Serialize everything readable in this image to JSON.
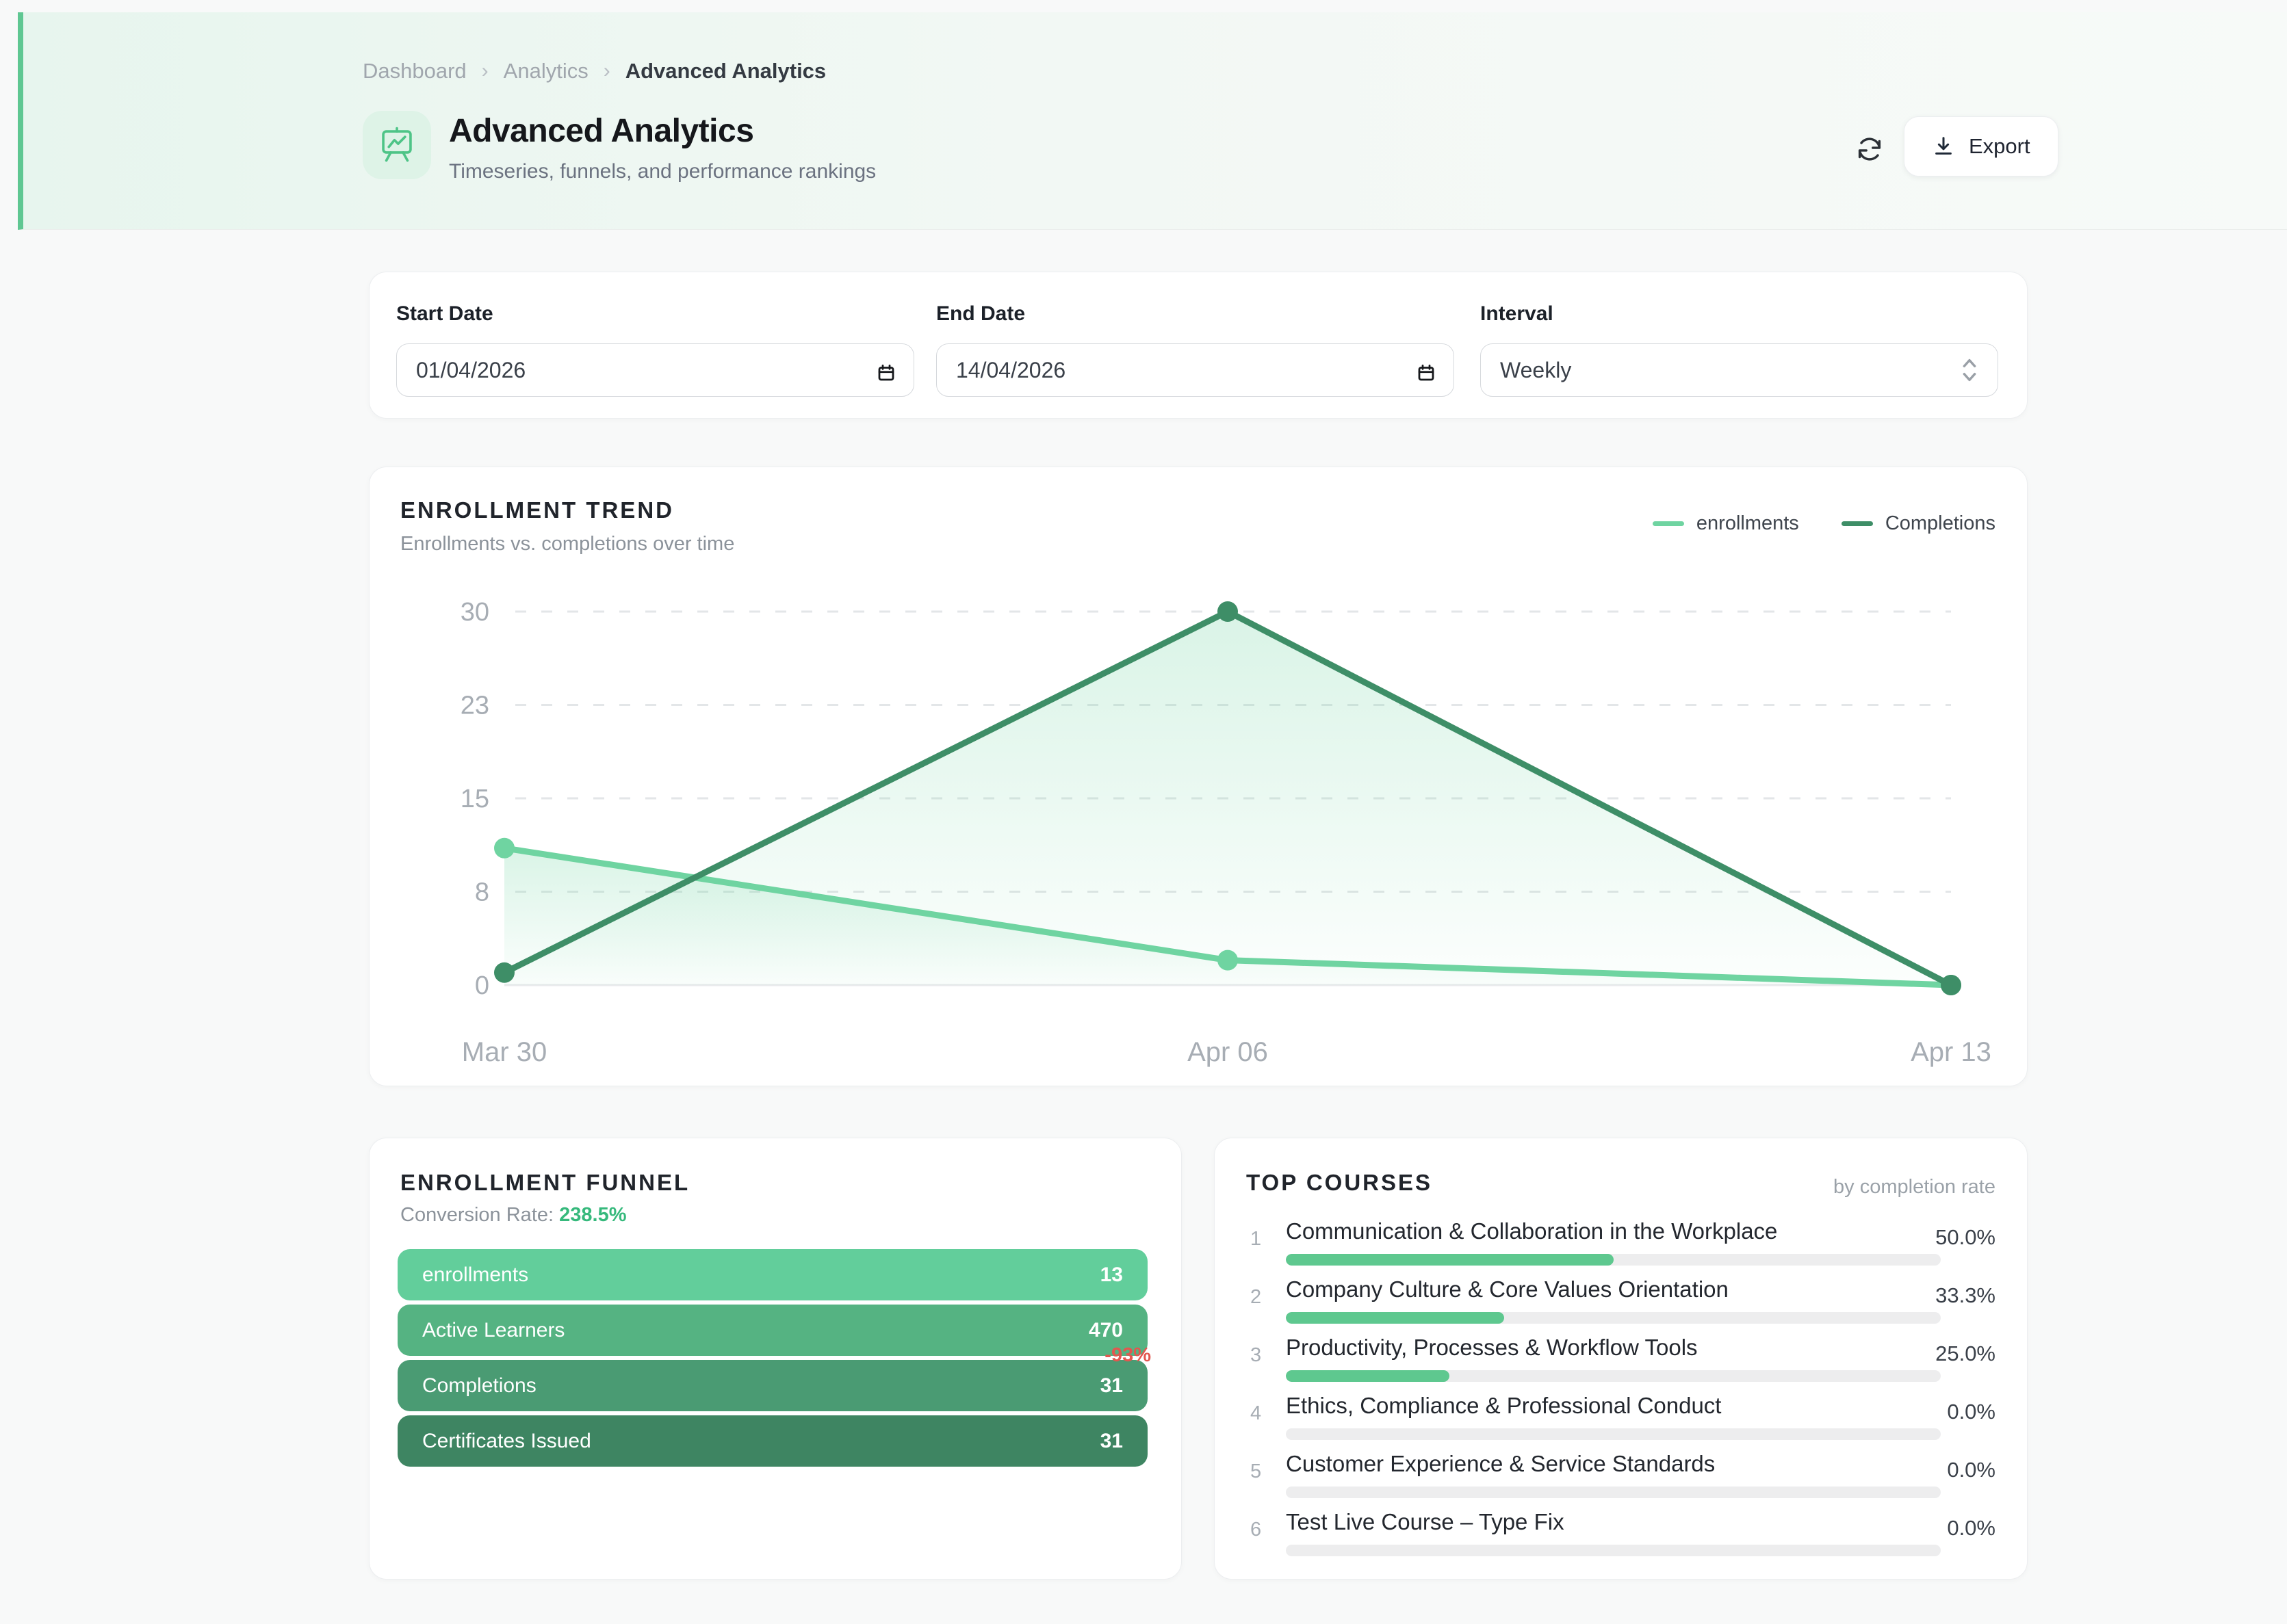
{
  "header": {
    "breadcrumb": {
      "items": [
        "Dashboard",
        "Analytics",
        "Advanced Analytics"
      ],
      "separator": "›"
    },
    "title": "Advanced Analytics",
    "subtitle": "Timeseries, funnels, and performance rankings",
    "export_label": "Export"
  },
  "filters": {
    "start_date": {
      "label": "Start Date",
      "value": "01/04/2026"
    },
    "end_date": {
      "label": "End Date",
      "value": "14/04/2026"
    },
    "interval": {
      "label": "Interval",
      "value": "Weekly"
    }
  },
  "trend": {
    "title": "ENROLLMENT TREND",
    "subtitle": "Enrollments vs. completions over time",
    "legend": [
      {
        "label": "enrollments",
        "color": "#6fd4a1"
      },
      {
        "label": "Completions",
        "color": "#3e8e67"
      }
    ]
  },
  "chart_data": {
    "type": "line",
    "title": "ENROLLMENT TREND",
    "x": [
      "Mar 30",
      "Apr 06",
      "Apr 13"
    ],
    "series": [
      {
        "name": "enrollments",
        "color": "#6fd4a1",
        "values": [
          11,
          2,
          0
        ]
      },
      {
        "name": "Completions",
        "color": "#3e8e67",
        "values": [
          1,
          30,
          0
        ]
      }
    ],
    "ylim": [
      0,
      30
    ],
    "y_ticks": [
      0,
      7.5,
      15,
      22.5,
      30
    ],
    "y_tick_labels": [
      "0",
      "8",
      "15",
      "23",
      "30"
    ],
    "grid": "dashed-horizontal",
    "area_fill": true,
    "legend_position": "top-right"
  },
  "funnel": {
    "title": "ENROLLMENT FUNNEL",
    "conversion_label": "Conversion Rate:",
    "conversion_value": "238.5%",
    "stages": [
      {
        "label": "enrollments",
        "value": "13",
        "color": "#62ce9b"
      },
      {
        "label": "Active Learners",
        "value": "470",
        "color": "#55b382"
      },
      {
        "label": "Completions",
        "value": "31",
        "color": "#4a9b73"
      },
      {
        "label": "Certificates Issued",
        "value": "31",
        "color": "#3e8562"
      }
    ],
    "drop_label": "-93%",
    "drop_color": "#e2574f"
  },
  "top_courses": {
    "title": "TOP COURSES",
    "subtitle": "by completion rate",
    "bar_color": "#5ec88f",
    "items": [
      {
        "rank": "1",
        "name": "Communication & Collaboration in the Workplace",
        "rate": "50.0%",
        "pct": 50
      },
      {
        "rank": "2",
        "name": "Company Culture & Core Values Orientation",
        "rate": "33.3%",
        "pct": 33.3
      },
      {
        "rank": "3",
        "name": "Productivity, Processes & Workflow Tools",
        "rate": "25.0%",
        "pct": 25
      },
      {
        "rank": "4",
        "name": "Ethics, Compliance & Professional Conduct",
        "rate": "0.0%",
        "pct": 0
      },
      {
        "rank": "5",
        "name": "Customer Experience & Service Standards",
        "rate": "0.0%",
        "pct": 0
      },
      {
        "rank": "6",
        "name": "Test Live Course – Type Fix",
        "rate": "0.0%",
        "pct": 0
      }
    ]
  }
}
